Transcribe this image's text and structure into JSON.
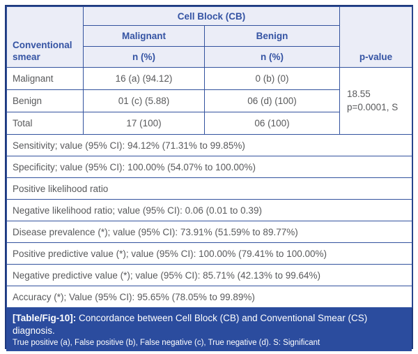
{
  "colors": {
    "header_bg": "#ebedf7",
    "header_text": "#3453a3",
    "border_blue": "#32529e",
    "outer_border": "#1f3a7d",
    "body_text": "#58595b",
    "footer_bg": "#2b4c9e",
    "footer_text": "#ffffff"
  },
  "table": {
    "header": {
      "row_label": "Conventional smear",
      "group_label": "Cell Block (CB)",
      "columns": [
        {
          "label": "Malignant",
          "sub": "n (%)"
        },
        {
          "label": "Benign",
          "sub": "n (%)"
        }
      ],
      "p_value_label": "p-value"
    },
    "rows": [
      {
        "label": "Malignant",
        "malignant": "16 (a) (94.12)",
        "benign": "0 (b) (0)"
      },
      {
        "label": "Benign",
        "malignant": "01 (c) (5.88)",
        "benign": "06 (d) (100)"
      },
      {
        "label": "Total",
        "malignant": "17 (100)",
        "benign": "06 (100)"
      }
    ],
    "p_value": {
      "line1": "18.55",
      "line2": "p=0.0001, S"
    },
    "stat_rows": [
      "Sensitivity; value (95% CI): 94.12% (71.31% to 99.85%)",
      "Specificity; value (95% CI): 100.00% (54.07% to 100.00%)",
      "Positive likelihood ratio",
      "Negative likelihood ratio; value (95% CI): 0.06 (0.01 to 0.39)",
      "Disease prevalence (*); value (95% CI): 73.91% (51.59% to 89.77%)",
      "Positive predictive value (*); value (95% CI): 100.00% (79.41% to 100.00%)",
      "Negative predictive value (*); value (95% CI): 85.71% (42.13% to 99.64%)",
      "Accuracy (*); Value (95% CI): 95.65% (78.05% to 99.89%)"
    ]
  },
  "caption": {
    "tag": "[Table/Fig-10]:",
    "text": " Concordance between Cell Block (CB) and Conventional Smear (CS) diagnosis.",
    "footnote": "True positive (a), False positive (b), False negative (c), True negative (d). S: Significant"
  }
}
